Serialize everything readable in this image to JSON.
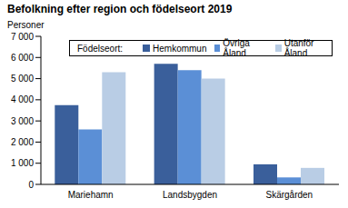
{
  "chart_data": {
    "type": "bar",
    "title": "Befolkning efter region och födelseort 2019",
    "ylabel": "Personer",
    "legend_title": "Födelseort:",
    "categories": [
      "Mariehamn",
      "Landsbygden",
      "Skärgården"
    ],
    "series": [
      {
        "name": "Hemkommun",
        "color": "#3a5f9b",
        "values": [
          3750,
          5700,
          950
        ]
      },
      {
        "name": "Övriga Åland",
        "color": "#5b8fd6",
        "values": [
          2600,
          5400,
          330
        ]
      },
      {
        "name": "Utanför Åland",
        "color": "#b9cde5",
        "values": [
          5300,
          5000,
          780
        ]
      }
    ],
    "ylim": [
      0,
      7000
    ],
    "yticks": [
      0,
      {
        "value": 1000,
        "label": "1 000"
      },
      {
        "value": 2000,
        "label": "2 000"
      },
      {
        "value": 3000,
        "label": "3 000"
      },
      {
        "value": 4000,
        "label": "4 000"
      },
      {
        "value": 5000,
        "label": "5 000"
      },
      {
        "value": 6000,
        "label": "6 000"
      },
      {
        "value": 7000,
        "label": "7 000"
      }
    ],
    "grid": false,
    "legend": "top"
  }
}
